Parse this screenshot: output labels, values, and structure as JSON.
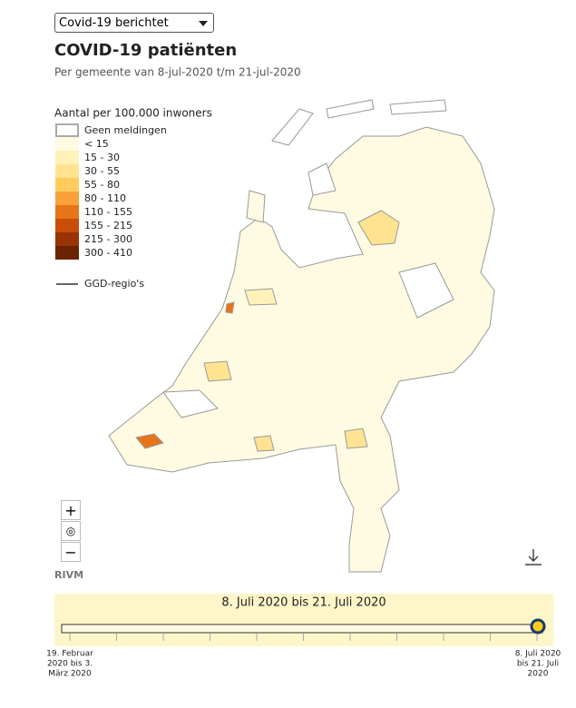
{
  "dropdown": {
    "selected": "Covid-19 berichtet"
  },
  "header": {
    "title": "COVID-19 patiënten",
    "subtitle": "Per gemeente van 8-jul-2020 t/m 21-jul-2020"
  },
  "legend": {
    "title": "Aantal per 100.000 inwoners",
    "items": [
      {
        "label": "Geen meldingen",
        "color": "#ffffff"
      },
      {
        "label": "< 15",
        "color": "#fffbe3"
      },
      {
        "label": "15 - 30",
        "color": "#fff2b8"
      },
      {
        "label": "30 - 55",
        "color": "#ffe391"
      },
      {
        "label": "55 - 80",
        "color": "#ffcc5c"
      },
      {
        "label": "80 - 110",
        "color": "#f9a23a"
      },
      {
        "label": "110 - 155",
        "color": "#e87419"
      },
      {
        "label": "155 - 215",
        "color": "#c94e0a"
      },
      {
        "label": "215 - 300",
        "color": "#993305"
      },
      {
        "label": "300 - 410",
        "color": "#6b2402"
      }
    ],
    "ggd_label": "GGD-regio's"
  },
  "controls": {
    "zoom_in": "+",
    "zoom_out": "−"
  },
  "source": "RIVM",
  "timeline": {
    "label": "8. Juli 2020 bis 21. Juli 2020",
    "start_label": [
      "19. Februar",
      "2020 bis 3.",
      "März 2020"
    ],
    "end_label": [
      "8. Juli 2020",
      "bis 21. Juli",
      "2020"
    ]
  }
}
